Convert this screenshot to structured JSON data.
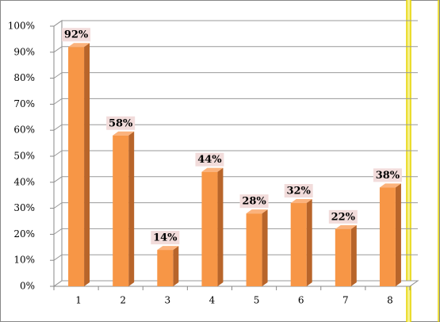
{
  "chart_data": {
    "type": "bar",
    "categories": [
      "1",
      "2",
      "3",
      "4",
      "5",
      "6",
      "7",
      "8"
    ],
    "values": [
      92,
      58,
      14,
      44,
      28,
      32,
      22,
      38
    ],
    "value_labels": [
      "92%",
      "58%",
      "14%",
      "44%",
      "28%",
      "32%",
      "22%",
      "38%"
    ],
    "color": "#f79646",
    "ylim": [
      0,
      100
    ],
    "yticks": [
      {
        "value": 0,
        "label": "0%"
      },
      {
        "value": 10,
        "label": "10%"
      },
      {
        "value": 20,
        "label": "20%"
      },
      {
        "value": 30,
        "label": "30%"
      },
      {
        "value": 40,
        "label": "40%"
      },
      {
        "value": 50,
        "label": "50%"
      },
      {
        "value": 60,
        "label": "60%"
      },
      {
        "value": 70,
        "label": "70%"
      },
      {
        "value": 80,
        "label": "80%"
      },
      {
        "value": 90,
        "label": "90%"
      },
      {
        "value": 100,
        "label": "100%"
      }
    ],
    "grid": true
  }
}
